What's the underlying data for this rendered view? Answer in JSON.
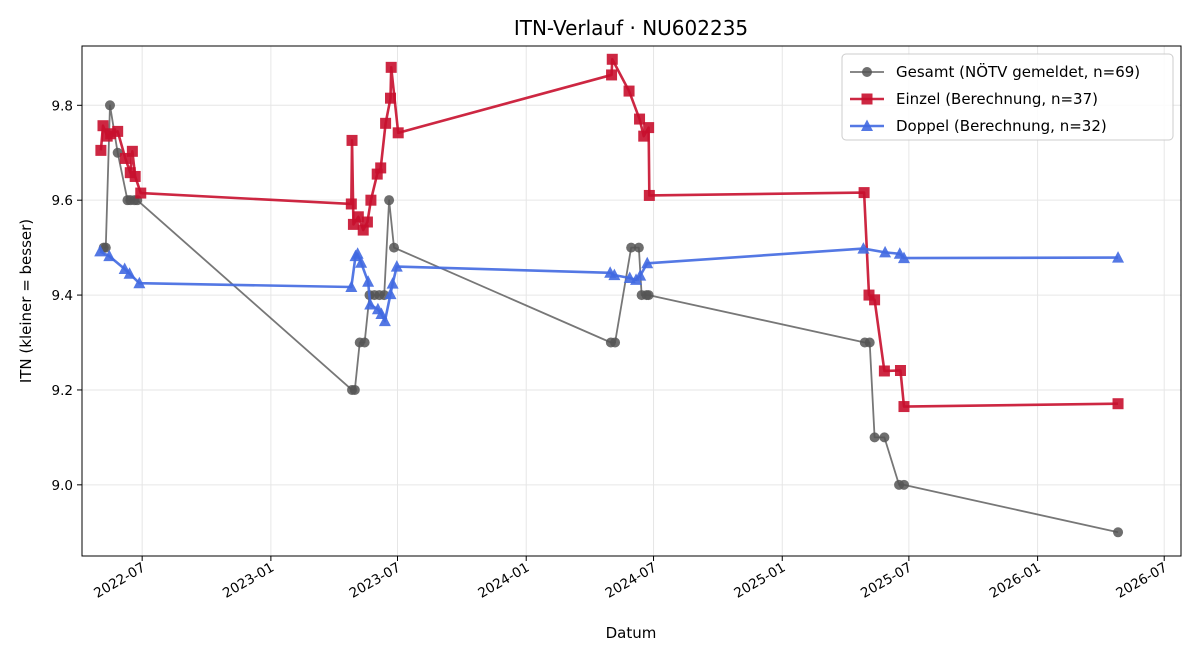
{
  "chart_data": {
    "type": "line",
    "title": "ITN-Verlauf · NU602235",
    "xlabel": "Datum",
    "ylabel": "ITN  (kleiner = besser)",
    "x_type": "date",
    "xlim": [
      "2022-04-06",
      "2026-07-25"
    ],
    "ylim": [
      8.85,
      9.925
    ],
    "x_ticks": [
      "2022-07-01",
      "2023-01-01",
      "2023-07-01",
      "2024-01-01",
      "2024-07-01",
      "2025-01-01",
      "2025-07-01",
      "2026-01-01",
      "2026-07-01"
    ],
    "x_tick_labels": [
      "2022-07",
      "2023-01",
      "2023-07",
      "2024-01",
      "2024-07",
      "2025-01",
      "2025-07",
      "2026-01",
      "2026-07"
    ],
    "y_ticks": [
      9.0,
      9.2,
      9.4,
      9.6,
      9.8
    ],
    "y_tick_labels": [
      "9.0",
      "9.2",
      "9.4",
      "9.6",
      "9.8"
    ],
    "grid": true,
    "legend_position": "top-right",
    "series": [
      {
        "name": "Gesamt (NÖTV gemeldet, n=69)",
        "color": "#555555",
        "marker": "circle",
        "points": [
          [
            "2022-05-07",
            9.5
          ],
          [
            "2022-05-10",
            9.5
          ],
          [
            "2022-05-16",
            9.8
          ],
          [
            "2022-05-27",
            9.7
          ],
          [
            "2022-06-10",
            9.6
          ],
          [
            "2022-06-14",
            9.6
          ],
          [
            "2022-06-20",
            9.6
          ],
          [
            "2022-06-24",
            9.6
          ],
          [
            "2023-04-27",
            9.2
          ],
          [
            "2023-05-01",
            9.2
          ],
          [
            "2023-05-08",
            9.3
          ],
          [
            "2023-05-15",
            9.3
          ],
          [
            "2023-05-22",
            9.4
          ],
          [
            "2023-05-29",
            9.4
          ],
          [
            "2023-06-05",
            9.4
          ],
          [
            "2023-06-12",
            9.4
          ],
          [
            "2023-06-19",
            9.6
          ],
          [
            "2023-06-26",
            9.5
          ],
          [
            "2024-05-01",
            9.3
          ],
          [
            "2024-05-07",
            9.3
          ],
          [
            "2024-05-30",
            9.5
          ],
          [
            "2024-06-10",
            9.5
          ],
          [
            "2024-06-14",
            9.4
          ],
          [
            "2024-06-21",
            9.4
          ],
          [
            "2024-06-24",
            9.4
          ],
          [
            "2025-04-29",
            9.3
          ],
          [
            "2025-05-06",
            9.3
          ],
          [
            "2025-05-13",
            9.1
          ],
          [
            "2025-05-27",
            9.1
          ],
          [
            "2025-06-17",
            9.0
          ],
          [
            "2025-06-24",
            9.0
          ],
          [
            "2026-04-26",
            8.9
          ]
        ]
      },
      {
        "name": "Einzel (Berechnung, n=37)",
        "color": "#c8102e",
        "marker": "square",
        "points": [
          [
            "2022-05-03",
            9.705
          ],
          [
            "2022-05-06",
            9.757
          ],
          [
            "2022-05-12",
            9.735
          ],
          [
            "2022-05-17",
            9.74
          ],
          [
            "2022-05-27",
            9.745
          ],
          [
            "2022-06-07",
            9.688
          ],
          [
            "2022-06-14",
            9.658
          ],
          [
            "2022-06-17",
            9.703
          ],
          [
            "2022-06-21",
            9.65
          ],
          [
            "2022-06-29",
            9.615
          ],
          [
            "2023-04-26",
            9.592
          ],
          [
            "2023-04-27",
            9.726
          ],
          [
            "2023-04-29",
            9.549
          ],
          [
            "2023-05-06",
            9.565
          ],
          [
            "2023-05-13",
            9.537
          ],
          [
            "2023-05-19",
            9.554
          ],
          [
            "2023-05-24",
            9.6
          ],
          [
            "2023-06-02",
            9.655
          ],
          [
            "2023-06-07",
            9.668
          ],
          [
            "2023-06-14",
            9.762
          ],
          [
            "2023-06-21",
            9.815
          ],
          [
            "2023-06-22",
            9.88
          ],
          [
            "2023-07-02",
            9.742
          ],
          [
            "2024-05-02",
            9.864
          ],
          [
            "2024-05-03",
            9.897
          ],
          [
            "2024-05-27",
            9.83
          ],
          [
            "2024-06-11",
            9.771
          ],
          [
            "2024-06-17",
            9.735
          ],
          [
            "2024-06-24",
            9.753
          ],
          [
            "2024-06-25",
            9.61
          ],
          [
            "2025-04-28",
            9.616
          ],
          [
            "2025-05-05",
            9.4
          ],
          [
            "2025-05-13",
            9.39
          ],
          [
            "2025-05-27",
            9.24
          ],
          [
            "2025-06-19",
            9.241
          ],
          [
            "2025-06-24",
            9.165
          ],
          [
            "2026-04-26",
            9.171
          ]
        ]
      },
      {
        "name": "Doppel (Berechnung, n=32)",
        "color": "#4169e1",
        "marker": "triangle",
        "points": [
          [
            "2022-05-02",
            9.492
          ],
          [
            "2022-05-15",
            9.482
          ],
          [
            "2022-06-06",
            9.455
          ],
          [
            "2022-06-13",
            9.445
          ],
          [
            "2022-06-27",
            9.425
          ],
          [
            "2023-04-26",
            9.417
          ],
          [
            "2023-05-02",
            9.482
          ],
          [
            "2023-05-05",
            9.487
          ],
          [
            "2023-05-10",
            9.468
          ],
          [
            "2023-05-20",
            9.428
          ],
          [
            "2023-05-23",
            9.38
          ],
          [
            "2023-06-03",
            9.37
          ],
          [
            "2023-06-08",
            9.36
          ],
          [
            "2023-06-13",
            9.345
          ],
          [
            "2023-06-21",
            9.402
          ],
          [
            "2023-06-24",
            9.424
          ],
          [
            "2023-06-30",
            9.46
          ],
          [
            "2024-04-30",
            9.447
          ],
          [
            "2024-05-06",
            9.442
          ],
          [
            "2024-05-28",
            9.436
          ],
          [
            "2024-06-06",
            9.432
          ],
          [
            "2024-06-12",
            9.441
          ],
          [
            "2024-06-22",
            9.467
          ],
          [
            "2025-04-27",
            9.498
          ],
          [
            "2025-05-28",
            9.49
          ],
          [
            "2025-06-18",
            9.487
          ],
          [
            "2025-06-24",
            9.478
          ],
          [
            "2026-04-26",
            9.479
          ]
        ]
      }
    ]
  }
}
